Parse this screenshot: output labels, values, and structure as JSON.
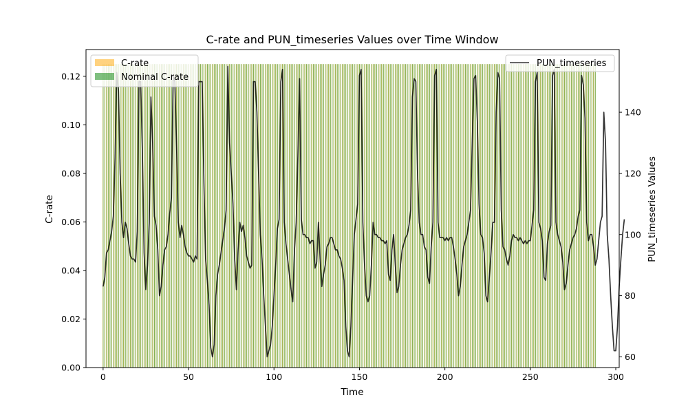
{
  "chart_data": {
    "type": "bar+line",
    "title": "C-rate and PUN_timeseries Values over Time Window",
    "xlabel": "Time",
    "ylabel_left": "C-rate",
    "ylabel_right": "PUN_timeseries Values",
    "xlim": [
      -10,
      302
    ],
    "ylim_left": [
      0,
      0.131
    ],
    "ylim_right": [
      56.5,
      160.5
    ],
    "xticks": [
      0,
      50,
      100,
      150,
      200,
      250,
      300
    ],
    "yticks_left": [
      0.0,
      0.02,
      0.04,
      0.06,
      0.08,
      0.1,
      0.12
    ],
    "yticks_left_labels": [
      "0.00",
      "0.02",
      "0.04",
      "0.06",
      "0.08",
      "0.10",
      "0.12"
    ],
    "yticks_right": [
      60,
      80,
      100,
      120,
      140
    ],
    "bar_series": [
      {
        "name": "C-rate",
        "color": "#ffa500",
        "alpha": 0.5,
        "value": 0.125,
        "x_start": 0,
        "x_end": 288
      },
      {
        "name": "Nominal C-rate",
        "color": "#008000",
        "alpha": 0.5,
        "value": 0.125,
        "x_start": 0,
        "x_end": 288
      }
    ],
    "line_series": {
      "name": "PUN_timeseries",
      "color": "#000000",
      "x_start": 0,
      "values": [
        83,
        86,
        94,
        95,
        98,
        101,
        106,
        125,
        153,
        147,
        120,
        104,
        99,
        104,
        102,
        97,
        93,
        92,
        92,
        91,
        101,
        150,
        150,
        127,
        94,
        82,
        90,
        104,
        145,
        130,
        106,
        103,
        95,
        80,
        83,
        90,
        95,
        96,
        100,
        107,
        112,
        152,
        150,
        129,
        104,
        99,
        103,
        100,
        96,
        94,
        93,
        93,
        92,
        91,
        93,
        92,
        150,
        150,
        150,
        117,
        92,
        85,
        77,
        63,
        60,
        64,
        80,
        87,
        90,
        94,
        98,
        102,
        108,
        155,
        130,
        120,
        110,
        92,
        82,
        95,
        104,
        101,
        103,
        99,
        93,
        91,
        89,
        90,
        150,
        150,
        140,
        120,
        100,
        92,
        80,
        70,
        60,
        62,
        64,
        70,
        80,
        90,
        102,
        105,
        150,
        154,
        104,
        97,
        92,
        87,
        82,
        78,
        95,
        104,
        126,
        151,
        105,
        100,
        100,
        99,
        99,
        97,
        98,
        98,
        89,
        91,
        104,
        92,
        83,
        87,
        90,
        96,
        97,
        99,
        99,
        97,
        95,
        95,
        93,
        92,
        89,
        85,
        70,
        62,
        60,
        70,
        85,
        100,
        105,
        110,
        152,
        154,
        104,
        90,
        80,
        78,
        80,
        90,
        104,
        100,
        100,
        99,
        99,
        98,
        98,
        97,
        98,
        87,
        85,
        95,
        100,
        90,
        81,
        83,
        90,
        95,
        97,
        99,
        100,
        103,
        108,
        145,
        151,
        150,
        120,
        104,
        100,
        100,
        96,
        95,
        86,
        84,
        96,
        104,
        152,
        154,
        104,
        99,
        99,
        99,
        98,
        99,
        98,
        99,
        99,
        96,
        92,
        87,
        80,
        83,
        90,
        96,
        98,
        100,
        104,
        108,
        130,
        151,
        152,
        137,
        110,
        100,
        99,
        94,
        80,
        78,
        86,
        94,
        104,
        104,
        140,
        153,
        151,
        108,
        96,
        95,
        92,
        90,
        93,
        98,
        100,
        99,
        99,
        98,
        99,
        98,
        97,
        98,
        97,
        98,
        98,
        103,
        108,
        150,
        153,
        104,
        102,
        98,
        86,
        85,
        97,
        101,
        103,
        152,
        154,
        104,
        100,
        98,
        96,
        91,
        82,
        84,
        90,
        95,
        97,
        99,
        100,
        102,
        106,
        108,
        152,
        149,
        138,
        104,
        98,
        100,
        100,
        96,
        90,
        92,
        98,
        104,
        106,
        140,
        130,
        100,
        92,
        80,
        70,
        62,
        62,
        70,
        83,
        92,
        100,
        105
      ]
    },
    "legend_left": {
      "placement": "upper left",
      "entries": [
        "C-rate",
        "Nominal C-rate"
      ]
    },
    "legend_right": {
      "placement": "upper right",
      "entries": [
        "PUN_timeseries"
      ]
    },
    "grid": false
  }
}
